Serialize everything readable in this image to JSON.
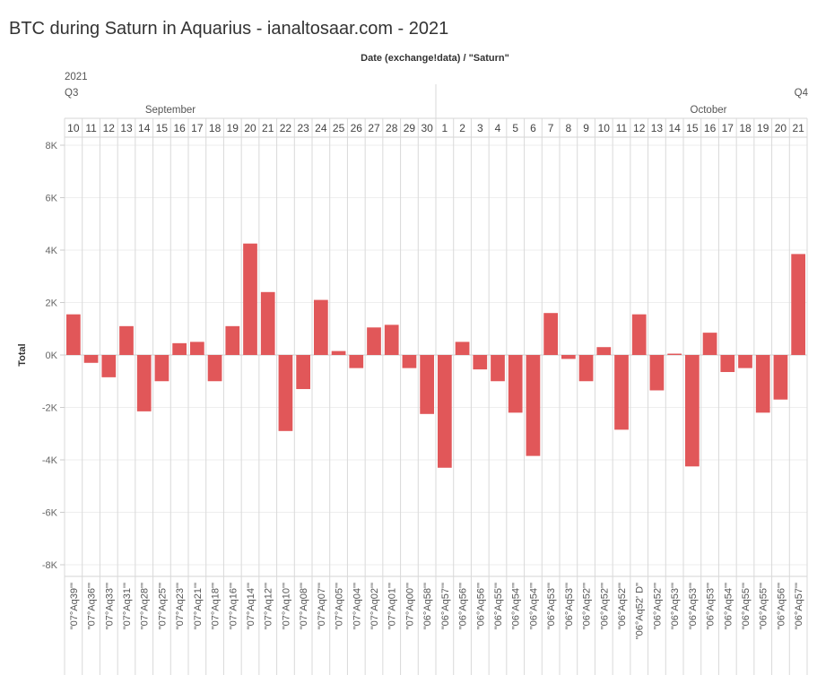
{
  "chart_data": {
    "type": "bar",
    "title": "BTC during Saturn in Aquarius - ianaltosaar.com - 2021",
    "column_header": "Date (exchange!data)  /  \"Saturn\"",
    "year": "2021",
    "quarters": [
      "Q3",
      "Q4"
    ],
    "months": [
      "September",
      "October"
    ],
    "days": [
      "10",
      "11",
      "12",
      "13",
      "14",
      "15",
      "16",
      "17",
      "18",
      "19",
      "20",
      "21",
      "22",
      "23",
      "24",
      "25",
      "26",
      "27",
      "28",
      "29",
      "30",
      "1",
      "2",
      "3",
      "4",
      "5",
      "6",
      "7",
      "8",
      "9",
      "10",
      "11",
      "12",
      "13",
      "14",
      "15",
      "16",
      "17",
      "18",
      "19",
      "20",
      "21"
    ],
    "categories": [
      "\"07°Aq39'\"",
      "\"07°Aq36'\"",
      "\"07°Aq33'\"",
      "\"07°Aq31'\"",
      "\"07°Aq28'\"",
      "\"07°Aq25'\"",
      "\"07°Aq23'\"",
      "\"07°Aq21'\"",
      "\"07°Aq18'\"",
      "\"07°Aq16'\"",
      "\"07°Aq14'\"",
      "\"07°Aq12'\"",
      "\"07°Aq10'\"",
      "\"07°Aq08'\"",
      "\"07°Aq07'\"",
      "\"07°Aq05'\"",
      "\"07°Aq04'\"",
      "\"07°Aq02'\"",
      "\"07°Aq01'\"",
      "\"07°Aq00'\"",
      "\"06°Aq58'\"",
      "\"06°Aq57'\"",
      "\"06°Aq56'\"",
      "\"06°Aq56'\"",
      "\"06°Aq55'\"",
      "\"06°Aq54'\"",
      "\"06°Aq54'\"",
      "\"06°Aq53'\"",
      "\"06°Aq53'\"",
      "\"06°Aq52'\"",
      "\"06°Aq52'\"",
      "\"06°Aq52'\"",
      "\"06°Aq52' D\"",
      "\"06°Aq52'\"",
      "\"06°Aq53'\"",
      "\"06°Aq53'\"",
      "\"06°Aq53'\"",
      "\"06°Aq54'\"",
      "\"06°Aq55'\"",
      "\"06°Aq55'\"",
      "\"06°Aq56'\"",
      "\"06°Aq57'\""
    ],
    "values": [
      1550,
      -300,
      -850,
      1100,
      -2150,
      -1000,
      450,
      500,
      -1000,
      1100,
      4250,
      2400,
      -2900,
      -1300,
      2100,
      150,
      -500,
      1050,
      1150,
      -500,
      -2250,
      -4300,
      500,
      -550,
      -1000,
      -2200,
      -3850,
      1600,
      -150,
      -1000,
      300,
      -2850,
      1550,
      -1350,
      50,
      -4250,
      850,
      -650,
      -500,
      -2200,
      -1700,
      3850
    ],
    "ylabel": "Total",
    "yticks": [
      8000,
      6000,
      4000,
      2000,
      0,
      -2000,
      -4000,
      -6000,
      -8000
    ],
    "ytick_labels": [
      "8K",
      "6K",
      "4K",
      "2K",
      "0K",
      "-2K",
      "-4K",
      "-6K",
      "-8K"
    ],
    "ylim": [
      -8000,
      8000
    ],
    "bar_color": "#e15759",
    "grid": true
  }
}
